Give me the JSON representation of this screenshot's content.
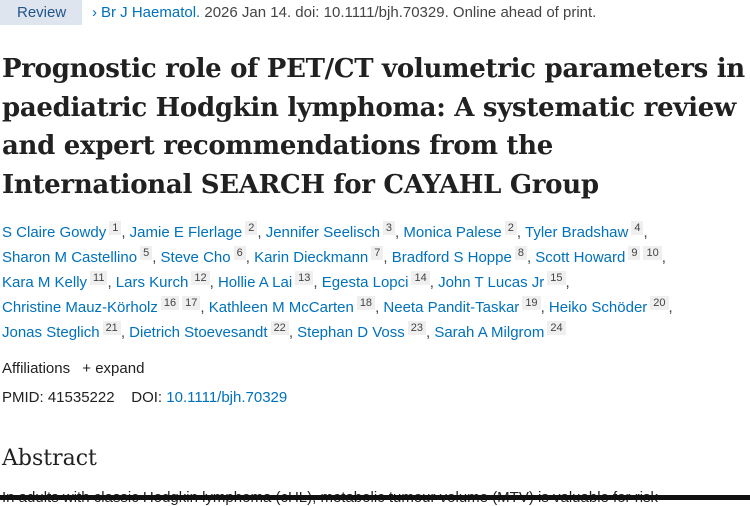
{
  "badge": "Review",
  "citation": {
    "journal": "Br J Haematol.",
    "rest": " 2026 Jan 14. doi: 10.1111/bjh.70329. Online ahead of print."
  },
  "title": "Prognostic role of PET/CT volumetric parameters in paediatric Hodgkin lymphoma: A systematic review and expert recommendations from the International SEARCH for CAYAHL Group",
  "author_lines": [
    [
      {
        "name": "S Claire Gowdy",
        "aff": [
          "1"
        ]
      },
      {
        "name": "Jamie E Flerlage",
        "aff": [
          "2"
        ]
      },
      {
        "name": "Jennifer Seelisch",
        "aff": [
          "3"
        ]
      },
      {
        "name": "Monica Palese",
        "aff": [
          "2"
        ]
      },
      {
        "name": "Tyler Bradshaw",
        "aff": [
          "4"
        ]
      }
    ],
    [
      {
        "name": "Sharon M Castellino",
        "aff": [
          "5"
        ]
      },
      {
        "name": "Steve Cho",
        "aff": [
          "6"
        ]
      },
      {
        "name": "Karin Dieckmann",
        "aff": [
          "7"
        ]
      },
      {
        "name": "Bradford S Hoppe",
        "aff": [
          "8"
        ]
      },
      {
        "name": "Scott Howard",
        "aff": [
          "9",
          "10"
        ]
      }
    ],
    [
      {
        "name": "Kara M Kelly",
        "aff": [
          "11"
        ]
      },
      {
        "name": "Lars Kurch",
        "aff": [
          "12"
        ]
      },
      {
        "name": "Hollie A Lai",
        "aff": [
          "13"
        ]
      },
      {
        "name": "Egesta Lopci",
        "aff": [
          "14"
        ]
      },
      {
        "name": "John T Lucas Jr",
        "aff": [
          "15"
        ]
      }
    ],
    [
      {
        "name": "Christine Mauz-Körholz",
        "aff": [
          "16",
          "17"
        ]
      },
      {
        "name": "Kathleen M McCarten",
        "aff": [
          "18"
        ]
      },
      {
        "name": "Neeta Pandit-Taskar",
        "aff": [
          "19"
        ]
      },
      {
        "name": "Heiko Schöder",
        "aff": [
          "20"
        ]
      }
    ],
    [
      {
        "name": "Jonas Steglich",
        "aff": [
          "21"
        ]
      },
      {
        "name": "Dietrich Stoevesandt",
        "aff": [
          "22"
        ]
      },
      {
        "name": "Stephan D Voss",
        "aff": [
          "23"
        ]
      },
      {
        "name": "Sarah A Milgrom",
        "aff": [
          "24"
        ]
      }
    ]
  ],
  "affiliations": {
    "label": "Affiliations",
    "expand": "expand",
    "icon": "plus-icon"
  },
  "ids": {
    "pmid_label": "PMID:",
    "pmid": "41535222",
    "doi_label": "DOI:",
    "doi": "10.1111/bjh.70329"
  },
  "abstract": {
    "heading": "Abstract",
    "text": "In adults with classic Hodgkin lymphoma (cHL), metabolic tumour volume (MTV) is valuable for risk"
  }
}
